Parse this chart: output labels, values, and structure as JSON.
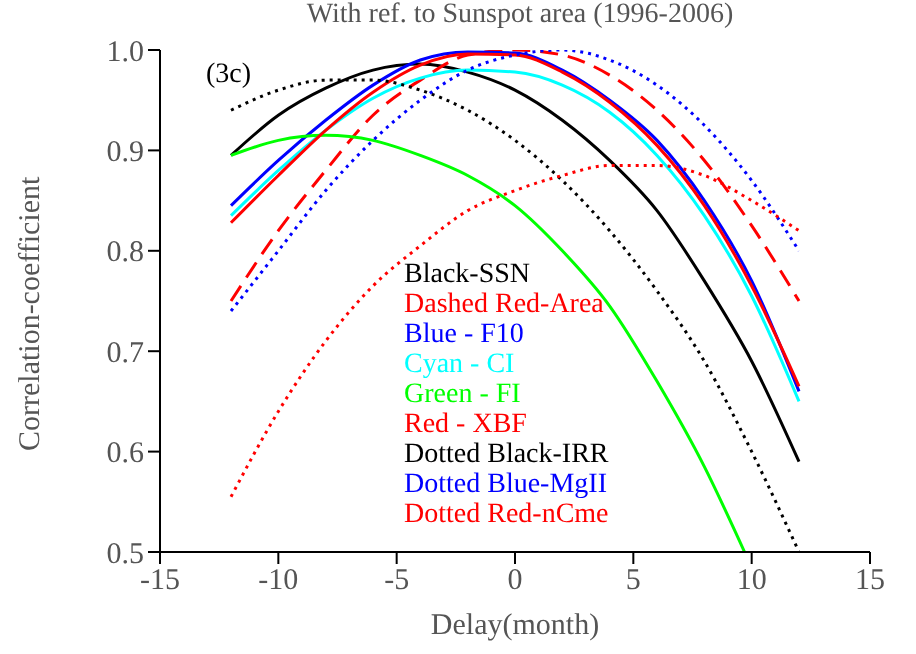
{
  "chart_data": {
    "type": "line",
    "title": "With ref. to Sunspot area (1996-2006)",
    "xlabel": "Delay(month)",
    "ylabel": "Correlation-coefficient",
    "x": [
      -12,
      -10,
      -8,
      -6,
      -4,
      -2,
      0,
      2,
      4,
      6,
      8,
      10,
      12
    ],
    "xlim": [
      -15,
      15
    ],
    "xticks": [
      -15,
      -10,
      -5,
      0,
      5,
      10,
      15
    ],
    "ylim": [
      0.5,
      1.0
    ],
    "yticks": [
      0.5,
      0.6,
      0.7,
      0.8,
      0.9,
      {
        "value": 1.0,
        "label": "1.0"
      }
    ],
    "grid": false,
    "marker": "none",
    "annotations": [
      "(3c)",
      "Black-SSN",
      "Dashed Red-Area",
      "Blue - F10",
      "Cyan - CI",
      "Green - FI",
      "Red - XBF",
      "Dotted Black-IRR",
      "Dotted Blue-MgII",
      "Dotted Red-nCme"
    ],
    "series": [
      {
        "color": "#000000",
        "line_style": "solid",
        "values": [
          0.895,
          0.935,
          0.962,
          0.98,
          0.986,
          0.978,
          0.96,
          0.93,
          0.89,
          0.84,
          0.77,
          0.69,
          0.59
        ]
      },
      {
        "color": "#ff0000",
        "line_style": "dashed",
        "values": [
          0.75,
          0.82,
          0.88,
          0.935,
          0.97,
          0.995,
          1.0,
          0.995,
          0.975,
          0.94,
          0.89,
          0.825,
          0.75
        ]
      },
      {
        "color": "#0000ff",
        "line_style": "solid",
        "values": [
          0.845,
          0.89,
          0.93,
          0.965,
          0.99,
          0.998,
          0.997,
          0.98,
          0.95,
          0.91,
          0.85,
          0.77,
          0.66
        ]
      },
      {
        "color": "#00ffff",
        "line_style": "solid",
        "values": [
          0.835,
          0.88,
          0.92,
          0.952,
          0.972,
          0.98,
          0.978,
          0.965,
          0.938,
          0.895,
          0.835,
          0.755,
          0.65
        ]
      },
      {
        "color": "#00ff00",
        "line_style": "solid",
        "x": [
          -12,
          -10,
          -8,
          -6,
          -4,
          -2,
          0,
          2,
          4,
          6,
          8,
          9.7
        ],
        "values": [
          0.895,
          0.91,
          0.915,
          0.91,
          0.895,
          0.875,
          0.845,
          0.8,
          0.745,
          0.67,
          0.585,
          0.5
        ]
      },
      {
        "color": "#ff0000",
        "line_style": "solid",
        "values": [
          0.828,
          0.875,
          0.92,
          0.958,
          0.985,
          0.996,
          0.995,
          0.978,
          0.948,
          0.905,
          0.845,
          0.765,
          0.665
        ]
      },
      {
        "color": "#000000",
        "line_style": "dotted",
        "values": [
          0.94,
          0.96,
          0.97,
          0.97,
          0.96,
          0.94,
          0.91,
          0.87,
          0.82,
          0.76,
          0.69,
          0.6,
          0.5
        ]
      },
      {
        "color": "#0000ff",
        "line_style": "dotted",
        "values": [
          0.74,
          0.8,
          0.86,
          0.91,
          0.95,
          0.98,
          0.995,
          1.0,
          0.99,
          0.965,
          0.925,
          0.87,
          0.8
        ]
      },
      {
        "color": "#ff0000",
        "line_style": "dotted",
        "values": [
          0.555,
          0.64,
          0.71,
          0.765,
          0.805,
          0.84,
          0.86,
          0.875,
          0.885,
          0.885,
          0.875,
          0.85,
          0.82
        ]
      }
    ]
  }
}
